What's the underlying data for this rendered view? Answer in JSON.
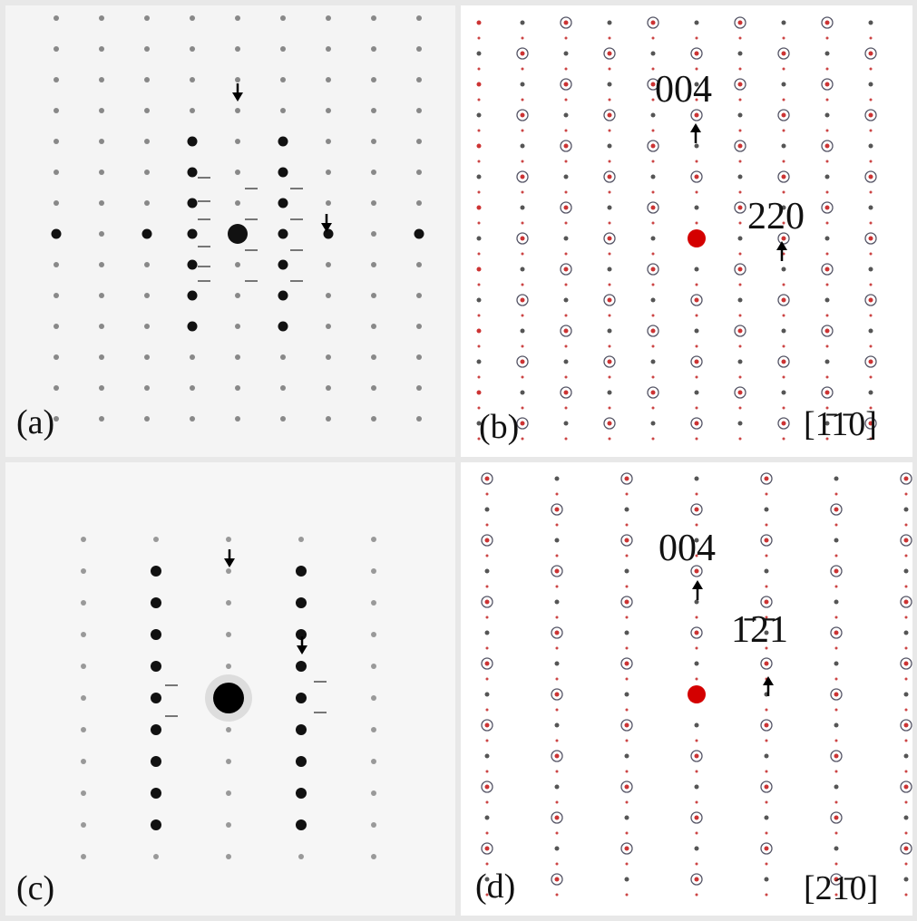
{
  "panels": [
    {
      "label": "(a)"
    },
    {
      "label": "(b)",
      "annotations": [
        "004",
        "220"
      ],
      "zone_axis": "[1̄1̄0]"
    },
    {
      "label": "(c)"
    },
    {
      "label": "(d)",
      "annotations": [
        "004",
        "1̄2̄1"
      ],
      "zone_axis": "[21̄0]"
    }
  ]
}
